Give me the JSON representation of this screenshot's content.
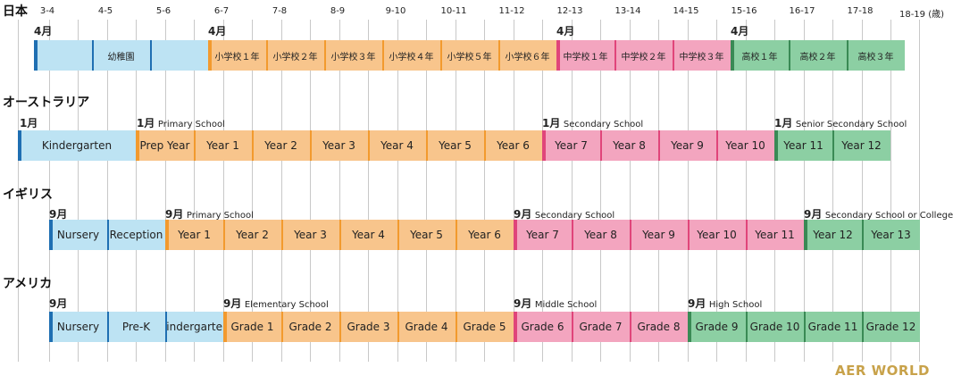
{
  "ages": [
    "3-4",
    "4-5",
    "5-6",
    "6-7",
    "7-8",
    "8-9",
    "9-10",
    "10-11",
    "11-12",
    "12-13",
    "13-14",
    "14-15",
    "15-16",
    "16-17",
    "17-18",
    "18-19 (歳)"
  ],
  "colors": {
    "kindergarten": "#bde3f3",
    "elementary": "#f8c58c",
    "middle": "#f3a5bf",
    "high": "#8ccfa3",
    "kindergarten_edge": "#1f6fb2",
    "elementary_edge": "#f29a2e",
    "middle_edge": "#e0457a",
    "high_edge": "#3a8a55"
  },
  "rows": [
    {
      "country": "日本",
      "starts": [
        {
          "month": "4月",
          "name": ""
        },
        {
          "month": "4月",
          "name": ""
        },
        {
          "month": "4月",
          "name": ""
        },
        {
          "month": "4月",
          "name": ""
        }
      ],
      "segments": [
        {
          "label": "",
          "type": "kindergarten"
        },
        {
          "label": "幼稚園",
          "type": "kindergarten"
        },
        {
          "label": "",
          "type": "kindergarten"
        },
        {
          "label": "小学校１年",
          "type": "elementary"
        },
        {
          "label": "小学校２年",
          "type": "elementary"
        },
        {
          "label": "小学校３年",
          "type": "elementary"
        },
        {
          "label": "小学校４年",
          "type": "elementary"
        },
        {
          "label": "小学校５年",
          "type": "elementary"
        },
        {
          "label": "小学校６年",
          "type": "elementary"
        },
        {
          "label": "中学校１年",
          "type": "middle"
        },
        {
          "label": "中学校２年",
          "type": "middle"
        },
        {
          "label": "中学校３年",
          "type": "middle"
        },
        {
          "label": "高校１年",
          "type": "high"
        },
        {
          "label": "高校２年",
          "type": "high"
        },
        {
          "label": "高校３年",
          "type": "high"
        }
      ]
    },
    {
      "country": "オーストラリア",
      "starts": [
        {
          "month": "1月",
          "name": ""
        },
        {
          "month": "1月",
          "name": "Primary School"
        },
        {
          "month": "1月",
          "name": "Secondary School"
        },
        {
          "month": "1月",
          "name": "Senior Secondary School"
        }
      ],
      "segments": [
        {
          "label": "Kindergarten",
          "type": "kindergarten"
        },
        {
          "label": "Prep Year",
          "type": "elementary"
        },
        {
          "label": "Year 1",
          "type": "elementary"
        },
        {
          "label": "Year 2",
          "type": "elementary"
        },
        {
          "label": "Year 3",
          "type": "elementary"
        },
        {
          "label": "Year 4",
          "type": "elementary"
        },
        {
          "label": "Year 5",
          "type": "elementary"
        },
        {
          "label": "Year 6",
          "type": "elementary"
        },
        {
          "label": "Year 7",
          "type": "middle"
        },
        {
          "label": "Year 8",
          "type": "middle"
        },
        {
          "label": "Year 9",
          "type": "middle"
        },
        {
          "label": "Year 10",
          "type": "middle"
        },
        {
          "label": "Year 11",
          "type": "high"
        },
        {
          "label": "Year 12",
          "type": "high"
        }
      ]
    },
    {
      "country": "イギリス",
      "starts": [
        {
          "month": "9月",
          "name": ""
        },
        {
          "month": "9月",
          "name": "Primary School"
        },
        {
          "month": "9月",
          "name": "Secondary School"
        },
        {
          "month": "9月",
          "name": "Secondary School or College"
        }
      ],
      "segments": [
        {
          "label": "Nursery",
          "type": "kindergarten"
        },
        {
          "label": "Reception",
          "type": "kindergarten"
        },
        {
          "label": "Year 1",
          "type": "elementary"
        },
        {
          "label": "Year 2",
          "type": "elementary"
        },
        {
          "label": "Year 3",
          "type": "elementary"
        },
        {
          "label": "Year 4",
          "type": "elementary"
        },
        {
          "label": "Year 5",
          "type": "elementary"
        },
        {
          "label": "Year 6",
          "type": "elementary"
        },
        {
          "label": "Year 7",
          "type": "middle"
        },
        {
          "label": "Year 8",
          "type": "middle"
        },
        {
          "label": "Year 9",
          "type": "middle"
        },
        {
          "label": "Year 10",
          "type": "middle"
        },
        {
          "label": "Year 11",
          "type": "middle"
        },
        {
          "label": "Year 12",
          "type": "high"
        },
        {
          "label": "Year 13",
          "type": "high"
        }
      ]
    },
    {
      "country": "アメリカ",
      "starts": [
        {
          "month": "9月",
          "name": ""
        },
        {
          "month": "9月",
          "name": "Elementary School"
        },
        {
          "month": "9月",
          "name": "Middle School"
        },
        {
          "month": "9月",
          "name": "High School"
        }
      ],
      "segments": [
        {
          "label": "Nursery",
          "type": "kindergarten"
        },
        {
          "label": "Pre-K",
          "type": "kindergarten"
        },
        {
          "label": "Kindergarten",
          "type": "kindergarten"
        },
        {
          "label": "Grade 1",
          "type": "elementary"
        },
        {
          "label": "Grade 2",
          "type": "elementary"
        },
        {
          "label": "Grade 3",
          "type": "elementary"
        },
        {
          "label": "Grade 4",
          "type": "elementary"
        },
        {
          "label": "Grade 5",
          "type": "elementary"
        },
        {
          "label": "Grade 6",
          "type": "middle"
        },
        {
          "label": "Grade 7",
          "type": "middle"
        },
        {
          "label": "Grade 8",
          "type": "middle"
        },
        {
          "label": "Grade 9",
          "type": "high"
        },
        {
          "label": "Grade 10",
          "type": "high"
        },
        {
          "label": "Grade 11",
          "type": "high"
        },
        {
          "label": "Grade 12",
          "type": "high"
        }
      ]
    }
  ],
  "logo": "AER WORLD"
}
